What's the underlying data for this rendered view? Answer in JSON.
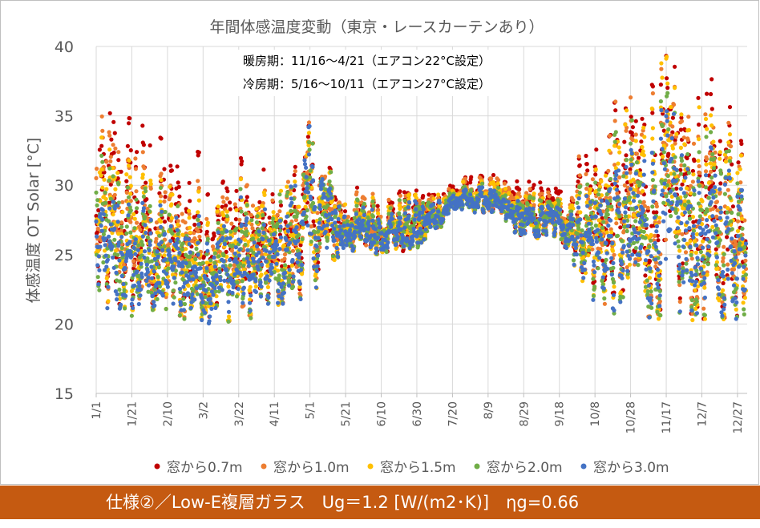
{
  "chart_data": {
    "type": "scatter",
    "title": "年間体感温度変動（東京・レースカーテンあり）",
    "annotations": [
      "暖房期：11/16～4/21（エアコン22°C設定）",
      "冷房期：5/16～10/11（エアコン27°C設定）"
    ],
    "ylabel": "体感温度 OT  Solar [°C]",
    "xlabel": "",
    "ylim": [
      15,
      40
    ],
    "yticks": [
      15,
      20,
      25,
      30,
      35,
      40
    ],
    "xticks": [
      "1/1",
      "1/21",
      "2/10",
      "3/2",
      "3/22",
      "4/11",
      "5/1",
      "5/21",
      "6/10",
      "6/30",
      "7/20",
      "8/9",
      "8/29",
      "9/18",
      "10/8",
      "10/28",
      "11/17",
      "12/7",
      "12/27"
    ],
    "grid": true,
    "legend_position": "bottom",
    "envelope_min_at_ticks": [
      20,
      20,
      20,
      20,
      20,
      21,
      22,
      25,
      25,
      25,
      28,
      28,
      26,
      26,
      21,
      20,
      20,
      20,
      20
    ],
    "series": [
      {
        "name": "窓から0.7m",
        "color": "#c00000",
        "max_at_ticks": [
          38,
          36.5,
          34,
          33,
          33,
          31,
          35,
          30,
          30,
          30,
          30.8,
          31,
          30.5,
          30.5,
          36,
          39,
          40,
          38,
          38
        ]
      },
      {
        "name": "窓から1.0m",
        "color": "#ed7d31",
        "max_at_ticks": [
          36.5,
          35,
          32.5,
          31.5,
          32,
          30,
          35,
          29.8,
          29.8,
          29.8,
          30.5,
          30.8,
          30,
          30,
          35,
          38,
          39,
          37,
          37
        ]
      },
      {
        "name": "窓から1.5m",
        "color": "#ffc000",
        "max_at_ticks": [
          35,
          33,
          31,
          30,
          31,
          29.5,
          35,
          29.5,
          29.5,
          29.5,
          30.3,
          30.5,
          29.7,
          29.7,
          34,
          37,
          40,
          36,
          36
        ]
      },
      {
        "name": "窓から2.0m",
        "color": "#70ad47",
        "max_at_ticks": [
          33,
          31.5,
          30,
          29,
          30.5,
          29,
          35,
          29.3,
          29.3,
          29.3,
          30,
          30.2,
          29.4,
          29.4,
          33,
          35.5,
          37,
          34.5,
          34.5
        ]
      },
      {
        "name": "窓から3.0m",
        "color": "#4472c4",
        "max_at_ticks": [
          31,
          30,
          29,
          28,
          30,
          28,
          35,
          29,
          29,
          29,
          29.8,
          30,
          29,
          29,
          32,
          34,
          36,
          33,
          33
        ]
      }
    ]
  },
  "footer": {
    "text": "仕様②／Low-E複層ガラス　Ug＝1.2 [W/(m2･K)]　ηg=0.66"
  }
}
